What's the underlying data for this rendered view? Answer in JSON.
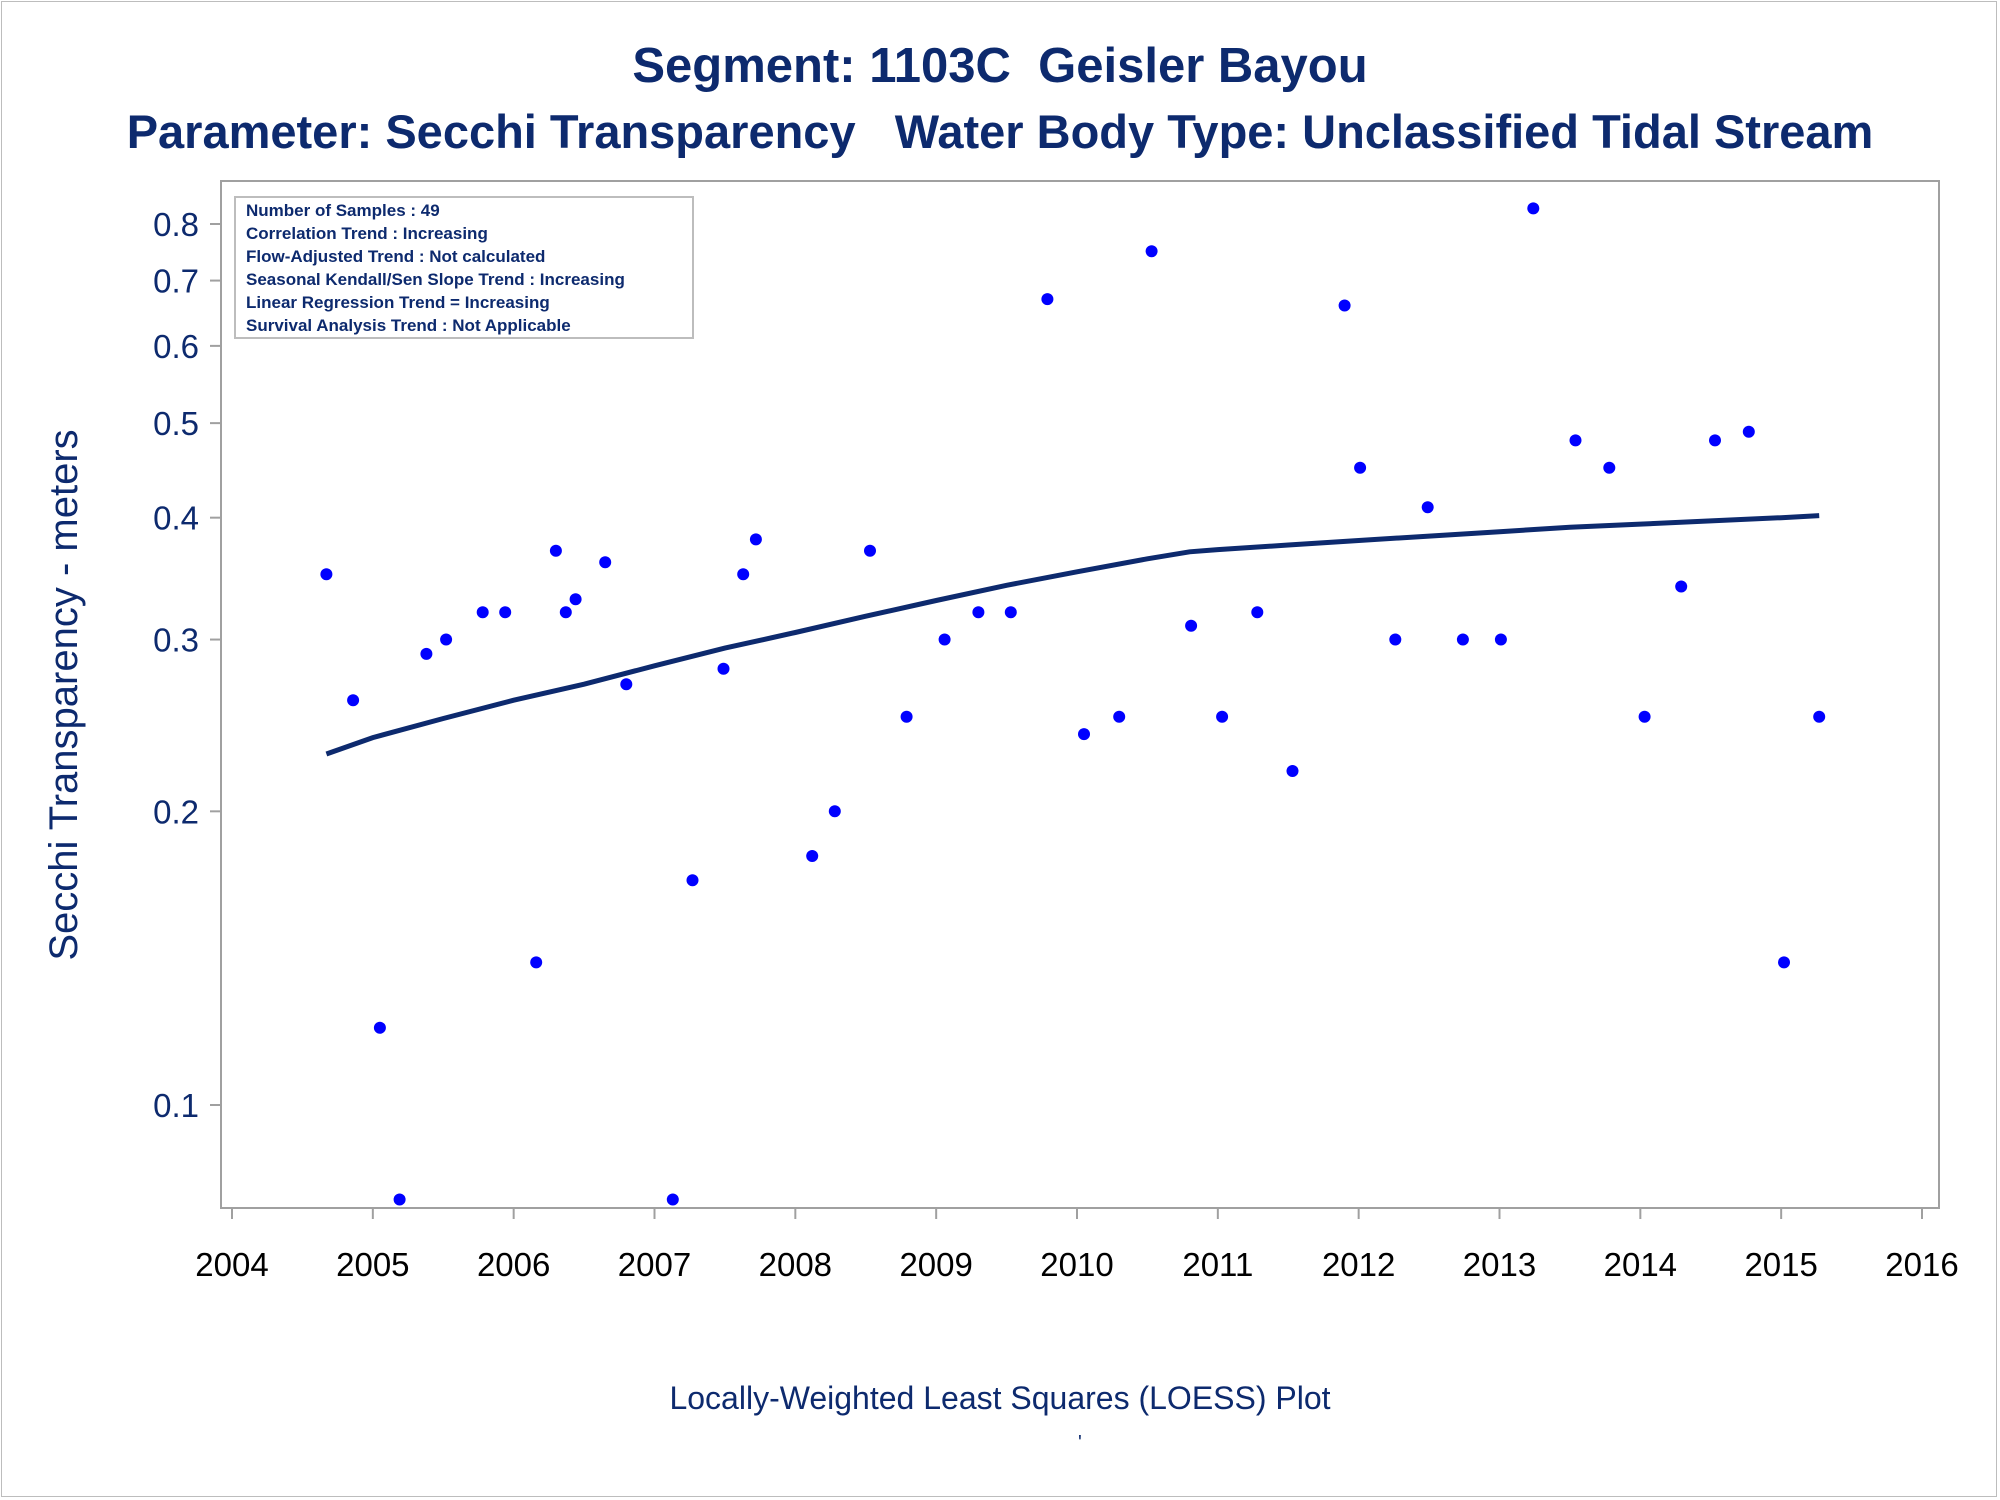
{
  "title": "Segment: 1103C  Geisler Bayou",
  "subtitle": "Parameter: Secchi Transparency   Water Body Type: Unclassified Tidal Stream",
  "footnote": "Locally-Weighted Least Squares (LOESS) Plot",
  "footnote_mark": "'",
  "colors": {
    "points": "#0000ff",
    "loess_line": "#0d2a6e",
    "text": "#0d2a6e",
    "frame": "#a0a0a0"
  },
  "inset": {
    "lines": [
      "Number of Samples : 49",
      "Correlation Trend : Increasing",
      "Flow-Adjusted Trend : Not calculated",
      "Seasonal Kendall/Sen Slope Trend : Increasing",
      "Linear Regression Trend = Increasing",
      "Survival Analysis Trend : Not Applicable"
    ]
  },
  "chart_data": {
    "type": "scatter",
    "title": "Segment: 1103C  Geisler Bayou",
    "subtitle": "Parameter: Secchi Transparency   Water Body Type: Unclassified Tidal Stream",
    "xlabel": "",
    "ylabel": "Secchi Transparency - meters",
    "yscale": "log",
    "xlim": [
      2004,
      2016
    ],
    "ylim": [
      0.075,
      0.87
    ],
    "xticks": [
      "2004",
      "2005",
      "2006",
      "2007",
      "2008",
      "2009",
      "2010",
      "2011",
      "2012",
      "2013",
      "2014",
      "2015",
      "2016"
    ],
    "yticks": [
      "0.1",
      "0.2",
      "0.3",
      "0.4",
      "0.5",
      "0.6",
      "0.7",
      "0.8"
    ],
    "grid": false,
    "legend": "none",
    "series": [
      {
        "type": "scatter",
        "x": [
          2004.67,
          2004.86,
          2005.05,
          2005.19,
          2005.38,
          2005.52,
          2005.78,
          2005.94,
          2006.16,
          2006.3,
          2006.37,
          2006.44,
          2006.65,
          2006.8,
          2007.13,
          2007.27,
          2007.49,
          2007.63,
          2007.72,
          2008.12,
          2008.28,
          2008.53,
          2008.79,
          2009.06,
          2009.3,
          2009.53,
          2009.79,
          2010.05,
          2010.3,
          2010.53,
          2010.81,
          2011.03,
          2011.28,
          2011.53,
          2011.9,
          2012.01,
          2012.26,
          2012.49,
          2012.74,
          2013.01,
          2013.24,
          2013.54,
          2013.78,
          2014.03,
          2014.29,
          2014.53,
          2014.77,
          2015.02,
          2015.27
        ],
        "y": [
          0.35,
          0.26,
          0.12,
          0.08,
          0.29,
          0.3,
          0.32,
          0.32,
          0.14,
          0.37,
          0.32,
          0.33,
          0.36,
          0.27,
          0.08,
          0.17,
          0.28,
          0.35,
          0.38,
          0.18,
          0.2,
          0.37,
          0.25,
          0.3,
          0.32,
          0.32,
          0.67,
          0.24,
          0.25,
          0.75,
          0.31,
          0.25,
          0.32,
          0.22,
          0.66,
          0.45,
          0.3,
          0.41,
          0.3,
          0.3,
          0.83,
          0.48,
          0.45,
          0.25,
          0.34,
          0.48,
          0.49,
          0.14,
          0.25
        ]
      },
      {
        "type": "line",
        "x": [
          2004.67,
          2005.0,
          2005.5,
          2006.0,
          2006.5,
          2007.0,
          2007.5,
          2008.0,
          2008.5,
          2009.0,
          2009.5,
          2010.0,
          2010.5,
          2010.8,
          2011.0,
          2011.5,
          2012.0,
          2012.5,
          2013.0,
          2013.5,
          2014.0,
          2014.5,
          2015.0,
          2015.27
        ],
        "y": [
          0.229,
          0.238,
          0.249,
          0.26,
          0.27,
          0.282,
          0.294,
          0.305,
          0.317,
          0.329,
          0.341,
          0.352,
          0.363,
          0.369,
          0.371,
          0.375,
          0.379,
          0.383,
          0.387,
          0.391,
          0.394,
          0.397,
          0.4,
          0.402
        ]
      }
    ]
  }
}
